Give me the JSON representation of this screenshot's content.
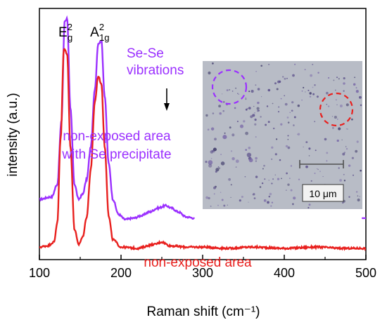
{
  "chart_data": {
    "type": "line",
    "xlabel": "Raman shift (cm⁻¹)",
    "ylabel": "intensity (a.u.)",
    "xlim": [
      100,
      500
    ],
    "x_ticks": [
      "100",
      "200",
      "300",
      "400",
      "500"
    ],
    "y_ticks_labeled": false,
    "grid": false,
    "series": [
      {
        "color": "#9b30ff",
        "note": "upper trace",
        "points": [
          [
            100,
            0.24
          ],
          [
            115,
            0.25
          ],
          [
            122,
            0.3
          ],
          [
            127,
            0.55
          ],
          [
            131,
            0.95
          ],
          [
            134,
            0.96
          ],
          [
            138,
            0.6
          ],
          [
            143,
            0.3
          ],
          [
            148,
            0.24
          ],
          [
            153,
            0.26
          ],
          [
            158,
            0.32
          ],
          [
            163,
            0.45
          ],
          [
            168,
            0.68
          ],
          [
            172,
            0.86
          ],
          [
            176,
            0.87
          ],
          [
            180,
            0.65
          ],
          [
            185,
            0.38
          ],
          [
            190,
            0.24
          ],
          [
            197,
            0.18
          ],
          [
            205,
            0.16
          ],
          [
            215,
            0.165
          ],
          [
            225,
            0.175
          ],
          [
            235,
            0.19
          ],
          [
            245,
            0.205
          ],
          [
            255,
            0.215
          ],
          [
            262,
            0.205
          ],
          [
            270,
            0.19
          ],
          [
            280,
            0.17
          ],
          [
            290,
            0.165
          ]
        ]
      },
      {
        "color": "#e8201e",
        "note": "lower trace",
        "points": [
          [
            100,
            0.05
          ],
          [
            110,
            0.055
          ],
          [
            118,
            0.07
          ],
          [
            122,
            0.15
          ],
          [
            126,
            0.48
          ],
          [
            130,
            0.84
          ],
          [
            134,
            0.82
          ],
          [
            138,
            0.45
          ],
          [
            143,
            0.12
          ],
          [
            148,
            0.06
          ],
          [
            153,
            0.09
          ],
          [
            158,
            0.17
          ],
          [
            163,
            0.36
          ],
          [
            168,
            0.63
          ],
          [
            172,
            0.73
          ],
          [
            176,
            0.7
          ],
          [
            180,
            0.45
          ],
          [
            185,
            0.17
          ],
          [
            190,
            0.08
          ],
          [
            200,
            0.05
          ],
          [
            220,
            0.045
          ],
          [
            240,
            0.06
          ],
          [
            250,
            0.07
          ],
          [
            260,
            0.055
          ],
          [
            280,
            0.05
          ],
          [
            300,
            0.05
          ],
          [
            330,
            0.045
          ],
          [
            360,
            0.05
          ],
          [
            400,
            0.045
          ],
          [
            440,
            0.05
          ],
          [
            470,
            0.045
          ],
          [
            500,
            0.045
          ]
        ]
      }
    ],
    "peak_labels": [
      {
        "base": "E",
        "sub": "g",
        "sup": "2",
        "x": 132
      },
      {
        "base": "A",
        "sub": "1g",
        "sup": "2",
        "x": 174
      }
    ],
    "annotations": {
      "sese_line1": "Se-Se",
      "sese_line2": "vibrations",
      "sese_arrow_x": 256,
      "purple_line1": "non-exposed area",
      "purple_line2": "with Se precipitate",
      "red_label": "non-exposed area"
    },
    "inset": {
      "scale_bar_label": "10 μm",
      "circle_colors": [
        "#9b30ff",
        "#e8201e"
      ]
    }
  }
}
